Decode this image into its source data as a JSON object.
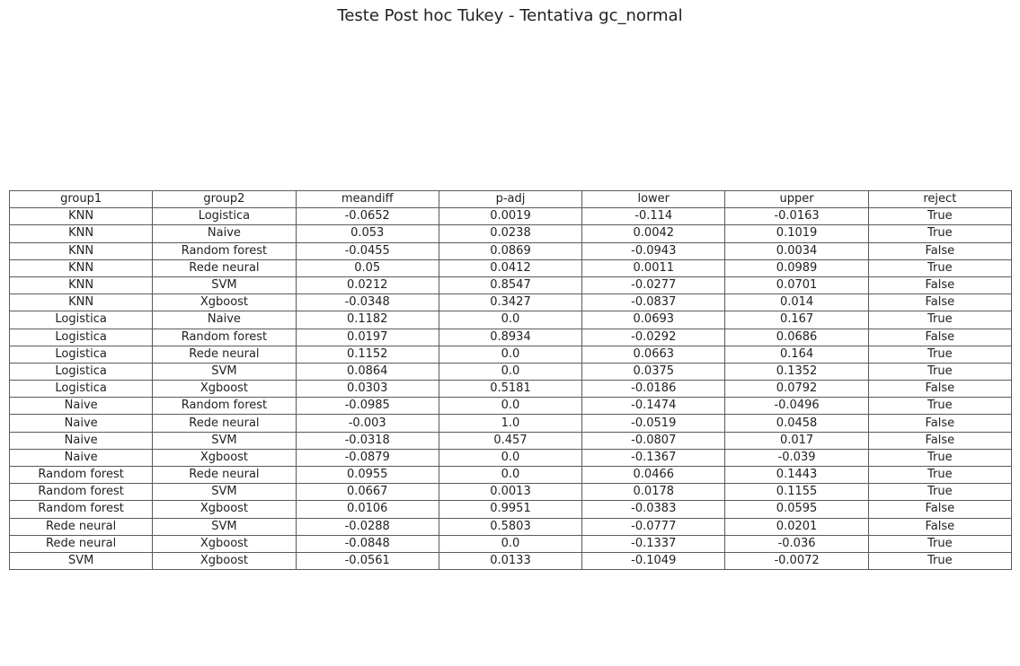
{
  "chart_data": {
    "type": "table",
    "title": "Teste Post hoc Tukey - Tentativa gc_normal",
    "columns": [
      "group1",
      "group2",
      "meandiff",
      "p-adj",
      "lower",
      "upper",
      "reject"
    ],
    "rows": [
      [
        "KNN",
        "Logistica",
        "-0.0652",
        "0.0019",
        "-0.114",
        "-0.0163",
        "True"
      ],
      [
        "KNN",
        "Naive",
        "0.053",
        "0.0238",
        "0.0042",
        "0.1019",
        "True"
      ],
      [
        "KNN",
        "Random forest",
        "-0.0455",
        "0.0869",
        "-0.0943",
        "0.0034",
        "False"
      ],
      [
        "KNN",
        "Rede neural",
        "0.05",
        "0.0412",
        "0.0011",
        "0.0989",
        "True"
      ],
      [
        "KNN",
        "SVM",
        "0.0212",
        "0.8547",
        "-0.0277",
        "0.0701",
        "False"
      ],
      [
        "KNN",
        "Xgboost",
        "-0.0348",
        "0.3427",
        "-0.0837",
        "0.014",
        "False"
      ],
      [
        "Logistica",
        "Naive",
        "0.1182",
        "0.0",
        "0.0693",
        "0.167",
        "True"
      ],
      [
        "Logistica",
        "Random forest",
        "0.0197",
        "0.8934",
        "-0.0292",
        "0.0686",
        "False"
      ],
      [
        "Logistica",
        "Rede neural",
        "0.1152",
        "0.0",
        "0.0663",
        "0.164",
        "True"
      ],
      [
        "Logistica",
        "SVM",
        "0.0864",
        "0.0",
        "0.0375",
        "0.1352",
        "True"
      ],
      [
        "Logistica",
        "Xgboost",
        "0.0303",
        "0.5181",
        "-0.0186",
        "0.0792",
        "False"
      ],
      [
        "Naive",
        "Random forest",
        "-0.0985",
        "0.0",
        "-0.1474",
        "-0.0496",
        "True"
      ],
      [
        "Naive",
        "Rede neural",
        "-0.003",
        "1.0",
        "-0.0519",
        "0.0458",
        "False"
      ],
      [
        "Naive",
        "SVM",
        "-0.0318",
        "0.457",
        "-0.0807",
        "0.017",
        "False"
      ],
      [
        "Naive",
        "Xgboost",
        "-0.0879",
        "0.0",
        "-0.1367",
        "-0.039",
        "True"
      ],
      [
        "Random forest",
        "Rede neural",
        "0.0955",
        "0.0",
        "0.0466",
        "0.1443",
        "True"
      ],
      [
        "Random forest",
        "SVM",
        "0.0667",
        "0.0013",
        "0.0178",
        "0.1155",
        "True"
      ],
      [
        "Random forest",
        "Xgboost",
        "0.0106",
        "0.9951",
        "-0.0383",
        "0.0595",
        "False"
      ],
      [
        "Rede neural",
        "SVM",
        "-0.0288",
        "0.5803",
        "-0.0777",
        "0.0201",
        "False"
      ],
      [
        "Rede neural",
        "Xgboost",
        "-0.0848",
        "0.0",
        "-0.1337",
        "-0.036",
        "True"
      ],
      [
        "SVM",
        "Xgboost",
        "-0.0561",
        "0.0133",
        "-0.1049",
        "-0.0072",
        "True"
      ]
    ]
  }
}
